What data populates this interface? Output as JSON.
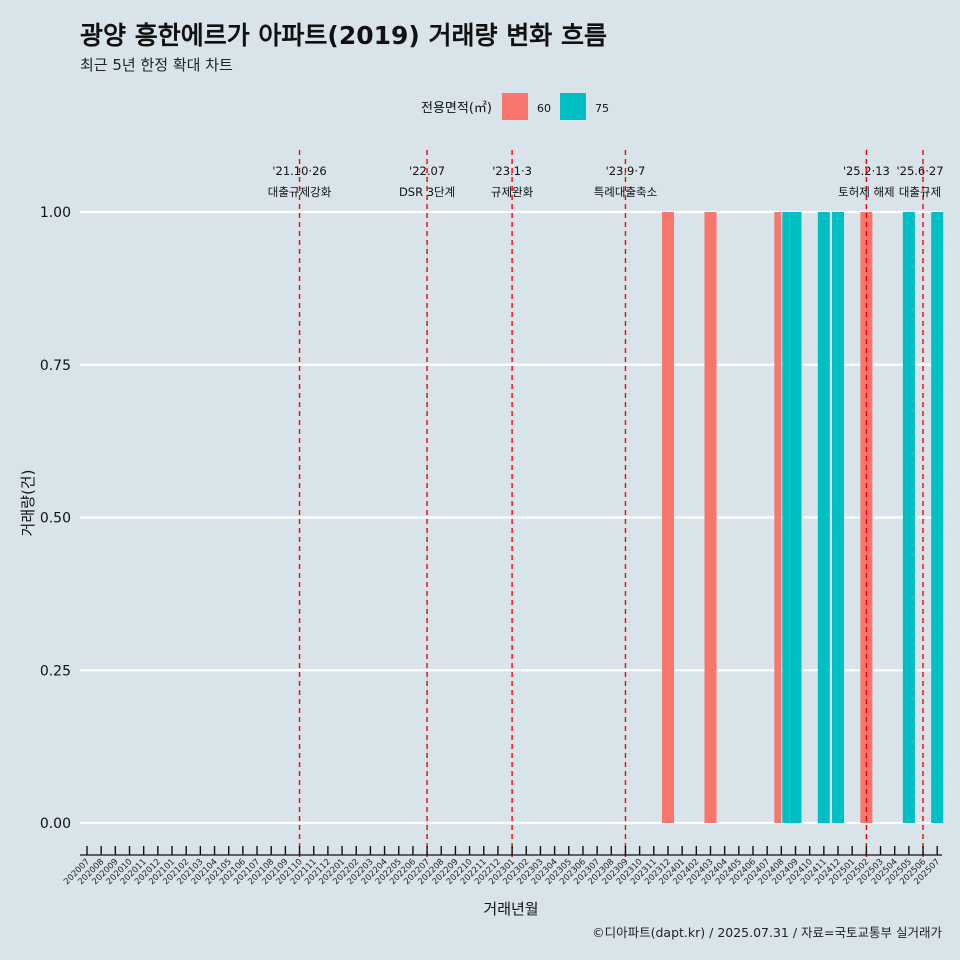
{
  "title": "광양 흥한에르가 아파트(2019) 거래량 변화 흐름",
  "subtitle": "최근 5년 한정 확대 차트",
  "caption": "©디아파트(dapt.kr) / 2025.07.31 / 자료=국토교통부 실거래가",
  "chart_data": {
    "type": "bar",
    "xlabel": "거래년월",
    "ylabel": "거래량(건)",
    "ylim": [
      0,
      1
    ],
    "yticks": [
      "0.00",
      "0.25",
      "0.50",
      "0.75",
      "1.00"
    ],
    "legend": {
      "title": "전용면적(㎡)",
      "position": "top",
      "items": [
        {
          "label": "60",
          "color": "#F8766D"
        },
        {
          "label": "75",
          "color": "#00BFC4"
        }
      ]
    },
    "grid": true,
    "categories": [
      "202007",
      "202008",
      "202009",
      "202010",
      "202011",
      "202012",
      "202101",
      "202102",
      "202103",
      "202104",
      "202105",
      "202106",
      "202107",
      "202108",
      "202109",
      "202110",
      "202111",
      "202112",
      "202201",
      "202202",
      "202203",
      "202204",
      "202205",
      "202206",
      "202207",
      "202208",
      "202209",
      "202210",
      "202211",
      "202212",
      "202301",
      "202302",
      "202303",
      "202304",
      "202305",
      "202306",
      "202307",
      "202308",
      "202309",
      "202310",
      "202311",
      "202312",
      "202401",
      "202402",
      "202403",
      "202404",
      "202405",
      "202406",
      "202407",
      "202408",
      "202409",
      "202410",
      "202411",
      "202412",
      "202501",
      "202502",
      "202503",
      "202504",
      "202505",
      "202506",
      "202507"
    ],
    "bars": [
      {
        "month": "202312",
        "area": "60",
        "value": 1
      },
      {
        "month": "202403",
        "area": "60",
        "value": 1
      },
      {
        "month": "202408",
        "area": "60",
        "value": 1
      },
      {
        "month": "202408",
        "area": "75",
        "value": 1
      },
      {
        "month": "202409",
        "area": "75",
        "value": 1
      },
      {
        "month": "202411",
        "area": "75",
        "value": 1
      },
      {
        "month": "202412",
        "area": "75",
        "value": 1
      },
      {
        "month": "202502",
        "area": "60",
        "value": 1
      },
      {
        "month": "202505",
        "area": "75",
        "value": 1
      },
      {
        "month": "202507",
        "area": "75",
        "value": 1
      }
    ],
    "annotations": [
      {
        "month": "202110",
        "date": "'21.10·26",
        "label": "대출규제강화"
      },
      {
        "month": "202207",
        "date": "'22.07",
        "label": "DSR 3단계"
      },
      {
        "month": "202301",
        "date": "'23.1·3",
        "label": "규제완화"
      },
      {
        "month": "202309",
        "date": "'23.9·7",
        "label": "특례대출축소"
      },
      {
        "month": "202502",
        "date": "'25.2·13",
        "label": "토허제 해제"
      },
      {
        "month": "202506",
        "date": "'25.6·27",
        "label": "대출규제"
      }
    ]
  }
}
